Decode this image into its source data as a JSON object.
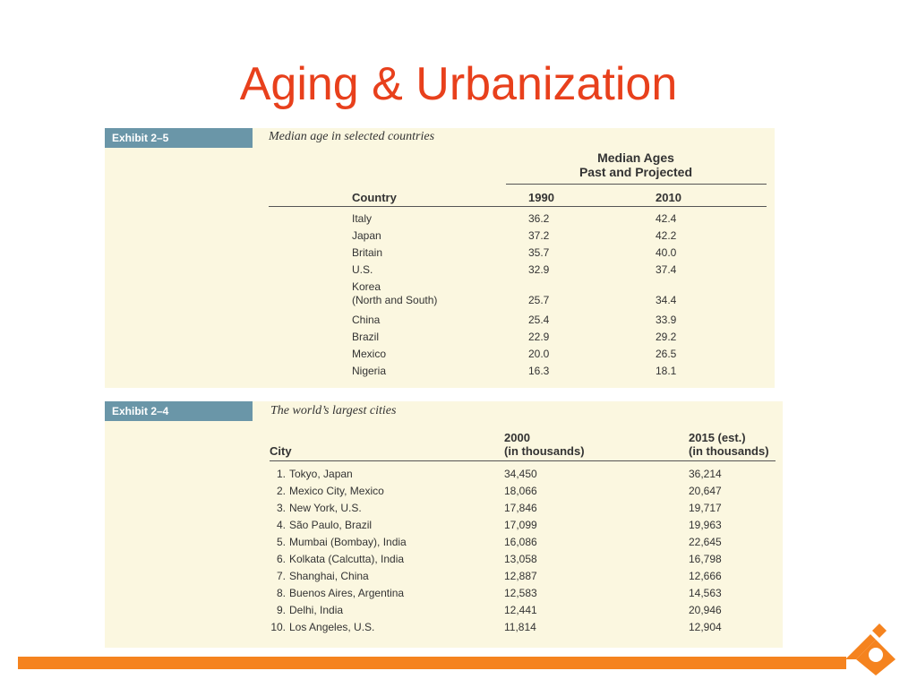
{
  "slide": {
    "title": "Aging & Urbanization"
  },
  "exhibit25": {
    "tag": "Exhibit 2–5",
    "caption": "Median age in selected countries",
    "group_header_line1": "Median Ages",
    "group_header_line2": "Past and Projected",
    "col_country": "Country",
    "col_1990": "1990",
    "col_2010": "2010",
    "rows": [
      {
        "country": "Italy",
        "country2": "",
        "y1990": "36.2",
        "y2010": "42.4"
      },
      {
        "country": "Japan",
        "country2": "",
        "y1990": "37.2",
        "y2010": "42.2"
      },
      {
        "country": "Britain",
        "country2": "",
        "y1990": "35.7",
        "y2010": "40.0"
      },
      {
        "country": "U.S.",
        "country2": "",
        "y1990": "32.9",
        "y2010": "37.4"
      },
      {
        "country": "Korea",
        "country2": "(North and South)",
        "y1990": "25.7",
        "y2010": "34.4"
      },
      {
        "country": "China",
        "country2": "",
        "y1990": "25.4",
        "y2010": "33.9"
      },
      {
        "country": "Brazil",
        "country2": "",
        "y1990": "22.9",
        "y2010": "29.2"
      },
      {
        "country": "Mexico",
        "country2": "",
        "y1990": "20.0",
        "y2010": "26.5"
      },
      {
        "country": "Nigeria",
        "country2": "",
        "y1990": "16.3",
        "y2010": "18.1"
      }
    ]
  },
  "exhibit24": {
    "tag": "Exhibit 2–4",
    "caption": "The world’s largest cities",
    "col_city": "City",
    "col_2000_line1": "2000",
    "col_2000_line2": "(in thousands)",
    "col_2015_line1": "2015 (est.)",
    "col_2015_line2": "(in thousands)",
    "rows": [
      {
        "num": "1.",
        "city": "Tokyo, Japan",
        "y2000": "34,450",
        "y2015": "36,214"
      },
      {
        "num": "2.",
        "city": "Mexico City, Mexico",
        "y2000": "18,066",
        "y2015": "20,647"
      },
      {
        "num": "3.",
        "city": "New York, U.S.",
        "y2000": "17,846",
        "y2015": "19,717"
      },
      {
        "num": "4.",
        "city": "São Paulo, Brazil",
        "y2000": "17,099",
        "y2015": "19,963"
      },
      {
        "num": "5.",
        "city": "Mumbai (Bombay), India",
        "y2000": "16,086",
        "y2015": "22,645"
      },
      {
        "num": "6.",
        "city": "Kolkata (Calcutta), India",
        "y2000": "13,058",
        "y2015": "16,798"
      },
      {
        "num": "7.",
        "city": "Shanghai, China",
        "y2000": "12,887",
        "y2015": "12,666"
      },
      {
        "num": "8.",
        "city": "Buenos Aires, Argentina",
        "y2000": "12,583",
        "y2015": "14,563"
      },
      {
        "num": "9.",
        "city": "Delhi, India",
        "y2000": "12,441",
        "y2015": "20,946"
      },
      {
        "num": "10.",
        "city": "Los Angeles, U.S.",
        "y2000": "11,814",
        "y2015": "12,904"
      }
    ]
  },
  "colors": {
    "title": "#e8401c",
    "exhibit_tag": "#6a96a8",
    "exhibit_bg": "#fbf7e0",
    "footer_bar": "#f5831f"
  },
  "footer": {
    "logo_icon": "orange-diamond-logo-icon"
  }
}
